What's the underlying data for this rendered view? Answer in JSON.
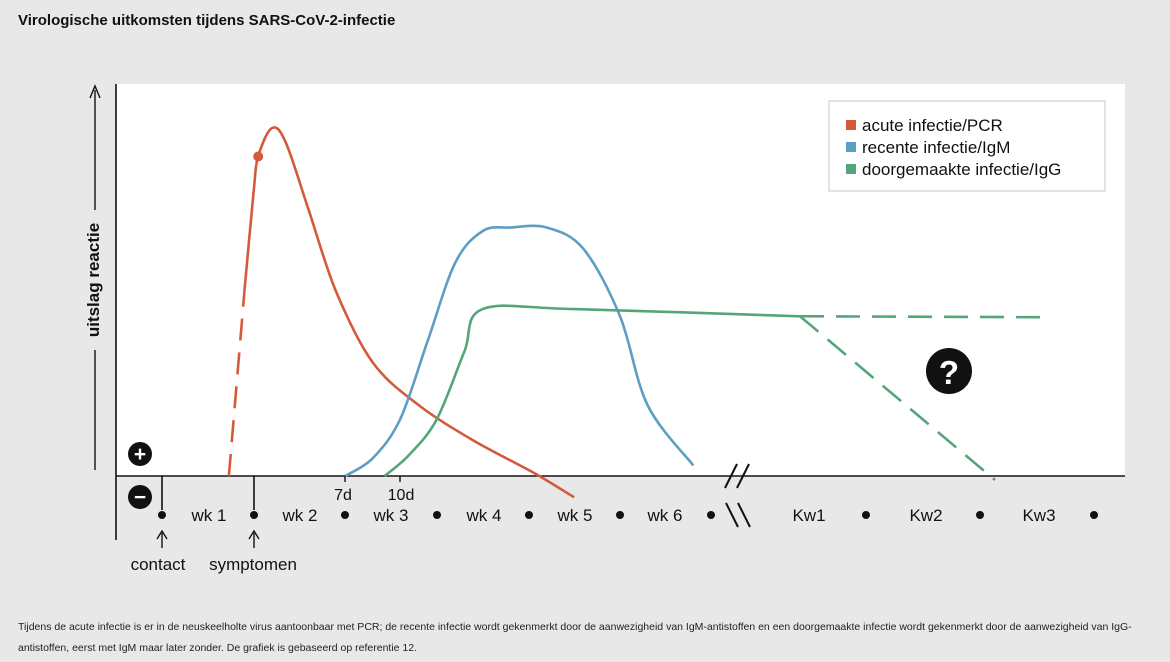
{
  "title": "Virologische uitkomsten tijdens SARS-CoV-2-infectie",
  "caption": "Tijdens de acute infectie is er in de neuskeelholte virus aantoonbaar met PCR; de recente infectie wordt gekenmerkt door de aanwezigheid van IgM-antistoffen en een doorgemaakte infectie wordt gekenmerkt door de aanwezigheid van IgG-antistoffen, eerst met IgM maar later zonder. De grafiek is gebaseerd op referentie 12.",
  "chart_data": {
    "type": "line",
    "ylabel": "uitslag reactie",
    "sign_plus": "+",
    "sign_minus": "−",
    "question_mark": "?",
    "x_ticks": [
      "wk 1",
      "wk 2",
      "wk 3",
      "wk 4",
      "wk 5",
      "wk 6",
      "Kw1",
      "Kw2",
      "Kw3"
    ],
    "day_ticks": [
      "7d",
      "10d"
    ],
    "events": [
      "contact",
      "symptomen"
    ],
    "series": [
      {
        "name": "acute infectie/PCR",
        "color": "#d45a3c",
        "x_weeks": [
          0.73,
          0.9,
          1.0,
          1.05,
          1.2,
          1.35,
          1.6,
          1.9,
          2.3,
          2.8,
          3.4,
          4.05,
          4.5
        ],
        "y": [
          0,
          0.52,
          0.8,
          0.9,
          0.98,
          0.94,
          0.75,
          0.52,
          0.32,
          0.2,
          0.1,
          0.01,
          -0.06
        ]
      },
      {
        "name": "recente infectie/IgM",
        "color": "#5b9fc3",
        "x_weeks": [
          2.0,
          2.3,
          2.6,
          2.9,
          3.2,
          3.5,
          3.8,
          4.2,
          4.6,
          5.0,
          5.3,
          5.8
        ],
        "y": [
          0,
          0.05,
          0.16,
          0.38,
          0.6,
          0.69,
          0.7,
          0.7,
          0.64,
          0.45,
          0.2,
          0.03
        ]
      },
      {
        "name": "doorgemaakte infectie/IgG",
        "color": "#55a57b",
        "x_weeks": [
          2.43,
          2.7,
          3.0,
          3.3,
          3.5,
          4.5,
          6.9
        ],
        "y": [
          0,
          0.06,
          0.16,
          0.35,
          0.47,
          0.47,
          0.45
        ],
        "dashed_after": "Kw1"
      }
    ],
    "legend_position": "top-right",
    "grid": false
  }
}
